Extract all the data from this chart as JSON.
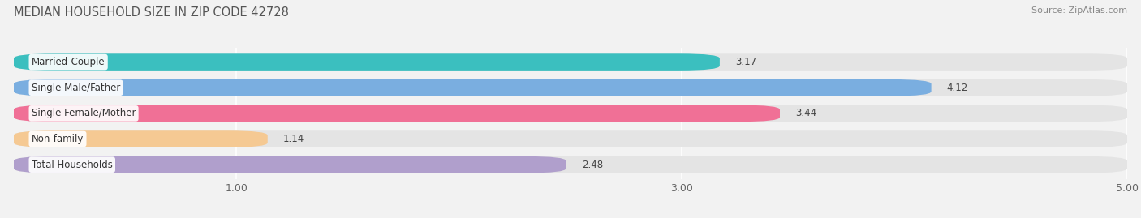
{
  "title": "MEDIAN HOUSEHOLD SIZE IN ZIP CODE 42728",
  "source": "Source: ZipAtlas.com",
  "categories": [
    "Married-Couple",
    "Single Male/Father",
    "Single Female/Mother",
    "Non-family",
    "Total Households"
  ],
  "values": [
    3.17,
    4.12,
    3.44,
    1.14,
    2.48
  ],
  "bar_colors": [
    "#3bbfbf",
    "#7aaee0",
    "#f07096",
    "#f5c993",
    "#b09fcc"
  ],
  "background_color": "#f2f2f2",
  "bar_bg_color": "#e4e4e4",
  "xlim": [
    0,
    5.0
  ],
  "xticks": [
    1.0,
    3.0,
    5.0
  ],
  "title_fontsize": 10.5,
  "source_fontsize": 8,
  "label_fontsize": 8.5,
  "value_fontsize": 8.5,
  "tick_fontsize": 9
}
